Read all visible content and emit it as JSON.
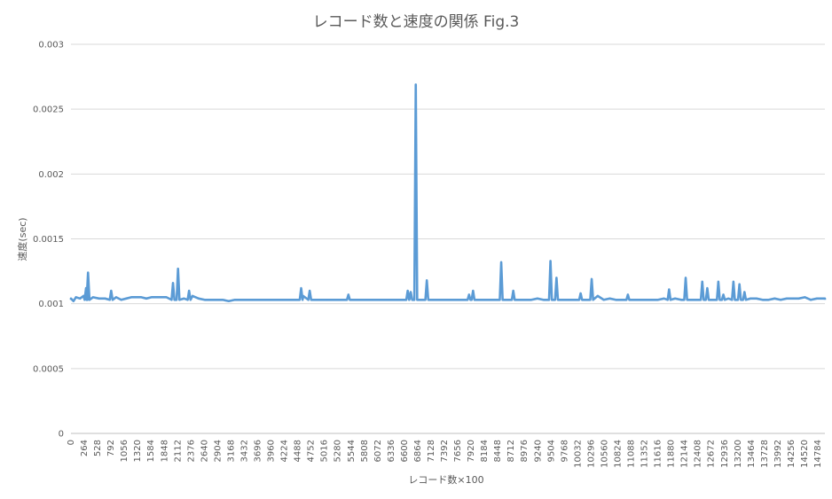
{
  "chart_data": {
    "type": "line",
    "title": "レコード数と速度の関係 Fig.3",
    "xlabel": "レコード数×100",
    "ylabel": "速度(sec)",
    "ylim": [
      0,
      0.003
    ],
    "y_ticks": [
      "0",
      "0.0005",
      "0.001",
      "0.0015",
      "0.002",
      "0.0025",
      "0.003"
    ],
    "x_ticks": [
      "0",
      "264",
      "528",
      "792",
      "1056",
      "1320",
      "1584",
      "1848",
      "2112",
      "2376",
      "2640",
      "2904",
      "3168",
      "3432",
      "3696",
      "3960",
      "4224",
      "4488",
      "4752",
      "5016",
      "5280",
      "5544",
      "5808",
      "6072",
      "6336",
      "6600",
      "6864",
      "7128",
      "7392",
      "7656",
      "7920",
      "8184",
      "8448",
      "8712",
      "8976",
      "9240",
      "9504",
      "9768",
      "10032",
      "10296",
      "10560",
      "10824",
      "11088",
      "11352",
      "11616",
      "11880",
      "12144",
      "12408",
      "12672",
      "12936",
      "13200",
      "13464",
      "13728",
      "13992",
      "14256",
      "14520",
      "14784"
    ],
    "x_range": [
      0,
      15000
    ],
    "grid": true,
    "legend": "none",
    "series": [
      {
        "color": "#5b9bd5",
        "baseline": 0.00103,
        "points": [
          [
            0,
            0.00104
          ],
          [
            50,
            0.00102
          ],
          [
            100,
            0.00105
          ],
          [
            180,
            0.00104
          ],
          [
            250,
            0.00106
          ],
          [
            300,
            0.00112
          ],
          [
            340,
            0.00124
          ],
          [
            440,
            0.00105
          ],
          [
            560,
            0.00104
          ],
          [
            680,
            0.00104
          ],
          [
            800,
            0.0011
          ],
          [
            900,
            0.00105
          ],
          [
            1000,
            0.00103
          ],
          [
            1100,
            0.00104
          ],
          [
            1200,
            0.00105
          ],
          [
            1300,
            0.00105
          ],
          [
            1400,
            0.00105
          ],
          [
            1500,
            0.00104
          ],
          [
            1600,
            0.00105
          ],
          [
            1700,
            0.00105
          ],
          [
            1800,
            0.00105
          ],
          [
            1900,
            0.00105
          ],
          [
            2030,
            0.00116
          ],
          [
            2130,
            0.00127
          ],
          [
            2250,
            0.00104
          ],
          [
            2350,
            0.0011
          ],
          [
            2420,
            0.00106
          ],
          [
            2540,
            0.00104
          ],
          [
            2660,
            0.00103
          ],
          [
            2780,
            0.00103
          ],
          [
            2900,
            0.00103
          ],
          [
            3020,
            0.00103
          ],
          [
            3140,
            0.00102
          ],
          [
            3260,
            0.00103
          ],
          [
            3380,
            0.00103
          ],
          [
            3500,
            0.00103
          ],
          [
            3620,
            0.00103
          ],
          [
            3740,
            0.00103
          ],
          [
            3860,
            0.00103
          ],
          [
            3980,
            0.00103
          ],
          [
            4100,
            0.00103
          ],
          [
            4220,
            0.00103
          ],
          [
            4340,
            0.00103
          ],
          [
            4460,
            0.00103
          ],
          [
            4580,
            0.00112
          ],
          [
            4620,
            0.00106
          ],
          [
            4750,
            0.0011
          ],
          [
            4860,
            0.00103
          ],
          [
            4980,
            0.00103
          ],
          [
            5100,
            0.00103
          ],
          [
            5220,
            0.00103
          ],
          [
            5340,
            0.00103
          ],
          [
            5460,
            0.00103
          ],
          [
            5520,
            0.00107
          ],
          [
            5640,
            0.00103
          ],
          [
            5760,
            0.00103
          ],
          [
            5880,
            0.00103
          ],
          [
            6000,
            0.00103
          ],
          [
            6120,
            0.00103
          ],
          [
            6240,
            0.00103
          ],
          [
            6360,
            0.00103
          ],
          [
            6480,
            0.00103
          ],
          [
            6600,
            0.00103
          ],
          [
            6700,
            0.0011
          ],
          [
            6760,
            0.00109
          ],
          [
            6860,
            0.00269
          ],
          [
            6960,
            0.00103
          ],
          [
            7080,
            0.00118
          ],
          [
            7200,
            0.00103
          ],
          [
            7320,
            0.00103
          ],
          [
            7440,
            0.00103
          ],
          [
            7560,
            0.00103
          ],
          [
            7680,
            0.00103
          ],
          [
            7800,
            0.00103
          ],
          [
            7920,
            0.00107
          ],
          [
            8000,
            0.0011
          ],
          [
            8100,
            0.00103
          ],
          [
            8220,
            0.00103
          ],
          [
            8340,
            0.00103
          ],
          [
            8460,
            0.00103
          ],
          [
            8560,
            0.00132
          ],
          [
            8700,
            0.00103
          ],
          [
            8800,
            0.0011
          ],
          [
            8920,
            0.00103
          ],
          [
            9040,
            0.00103
          ],
          [
            9160,
            0.00103
          ],
          [
            9280,
            0.00104
          ],
          [
            9400,
            0.00103
          ],
          [
            9500,
            0.00103
          ],
          [
            9540,
            0.00133
          ],
          [
            9660,
            0.0012
          ],
          [
            9780,
            0.00103
          ],
          [
            9900,
            0.00103
          ],
          [
            10020,
            0.00103
          ],
          [
            10140,
            0.00108
          ],
          [
            10260,
            0.00103
          ],
          [
            10360,
            0.00119
          ],
          [
            10480,
            0.00106
          ],
          [
            10600,
            0.00103
          ],
          [
            10720,
            0.00104
          ],
          [
            10840,
            0.00103
          ],
          [
            10960,
            0.00103
          ],
          [
            11080,
            0.00107
          ],
          [
            11200,
            0.00103
          ],
          [
            11320,
            0.00103
          ],
          [
            11440,
            0.00103
          ],
          [
            11560,
            0.00103
          ],
          [
            11680,
            0.00103
          ],
          [
            11800,
            0.00104
          ],
          [
            11900,
            0.00111
          ],
          [
            12020,
            0.00104
          ],
          [
            12140,
            0.00103
          ],
          [
            12230,
            0.0012
          ],
          [
            12360,
            0.00103
          ],
          [
            12480,
            0.00103
          ],
          [
            12560,
            0.00117
          ],
          [
            12660,
            0.00112
          ],
          [
            12760,
            0.00103
          ],
          [
            12880,
            0.00117
          ],
          [
            12980,
            0.00107
          ],
          [
            13080,
            0.00104
          ],
          [
            13180,
            0.00117
          ],
          [
            13300,
            0.00115
          ],
          [
            13400,
            0.00109
          ],
          [
            13520,
            0.00104
          ],
          [
            13640,
            0.00104
          ],
          [
            13760,
            0.00103
          ],
          [
            13880,
            0.00103
          ],
          [
            14000,
            0.00104
          ],
          [
            14120,
            0.00103
          ],
          [
            14240,
            0.00104
          ],
          [
            14360,
            0.00104
          ],
          [
            14480,
            0.00104
          ],
          [
            14600,
            0.00105
          ],
          [
            14720,
            0.00103
          ],
          [
            14840,
            0.00104
          ],
          [
            14960,
            0.00104
          ],
          [
            15000,
            0.00104
          ]
        ]
      }
    ]
  }
}
